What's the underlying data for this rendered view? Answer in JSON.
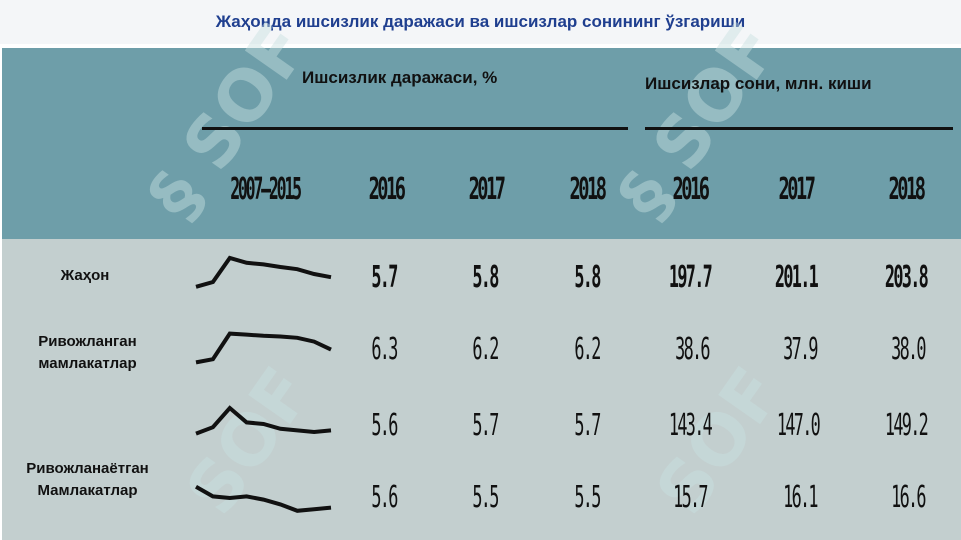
{
  "title": "Жаҳонда ишсизлик даражаси ва ишсизлар сонининг ўзгариши",
  "header": {
    "rate_label": "Ишсизлик даражаси, %",
    "count_label": "Ишсизлар сони, млн. киши",
    "years": [
      "2007–2015",
      "2016",
      "2017",
      "2018",
      "2016",
      "2017",
      "2018"
    ]
  },
  "rows": [
    {
      "label": "Жаҳон",
      "rate_2016": "5.7",
      "rate_2017": "5.8",
      "rate_2018": "5.8",
      "count_2016": "197.7",
      "count_2017": "201.1",
      "count_2018": "203.8",
      "bold": true
    },
    {
      "label": "Ривожланган\nмамлакатлар",
      "rate_2016": "6.3",
      "rate_2017": "6.2",
      "rate_2018": "6.2",
      "count_2016": "38.6",
      "count_2017": "37.9",
      "count_2018": "38.0",
      "bold": false
    },
    {
      "label": "",
      "rate_2016": "5.6",
      "rate_2017": "5.7",
      "rate_2018": "5.7",
      "count_2016": "143.4",
      "count_2017": "147.0",
      "count_2018": "149.2",
      "bold": false
    },
    {
      "label": "Ривожланаётган\nМамлакатлар",
      "rate_2016": "5.6",
      "rate_2017": "5.5",
      "rate_2018": "5.5",
      "count_2016": "15.7",
      "count_2017": "16.1",
      "count_2018": "16.6",
      "bold": false
    }
  ],
  "chart_data": {
    "type": "table",
    "title": "Жаҳонда ишсизлик даражаси ва ишсизлар сонининг ўзгариши",
    "columns": [
      "2007–2015",
      "2016",
      "2017",
      "2018",
      "2016",
      "2017",
      "2018"
    ],
    "column_groups": [
      {
        "name": "Ишсизлик даражаси, %",
        "columns": [
          "2007–2015",
          "2016",
          "2017",
          "2018"
        ]
      },
      {
        "name": "Ишсизлар сони, млн. киши",
        "columns": [
          "2016",
          "2017",
          "2018"
        ]
      }
    ],
    "row_labels": [
      "Жаҳон",
      "Ривожланган мамлакатлар",
      "",
      "Ривожланаётган Мамлакатлар"
    ],
    "values": [
      [
        5.7,
        5.8,
        5.8,
        197.7,
        201.1,
        203.8
      ],
      [
        6.3,
        6.2,
        6.2,
        38.6,
        37.9,
        38.0
      ],
      [
        5.6,
        5.7,
        5.7,
        143.4,
        147.0,
        149.2
      ],
      [
        5.6,
        5.5,
        5.5,
        15.7,
        16.1,
        16.6
      ]
    ],
    "sparklines": [
      [
        0.1,
        0.25,
        1.0,
        0.85,
        0.8,
        0.72,
        0.65,
        0.5,
        0.4
      ],
      [
        0.05,
        0.15,
        0.95,
        0.92,
        0.88,
        0.86,
        0.82,
        0.7,
        0.45
      ],
      [
        0.2,
        0.4,
        1.0,
        0.55,
        0.5,
        0.35,
        0.3,
        0.25,
        0.3
      ],
      [
        0.85,
        0.55,
        0.5,
        0.55,
        0.45,
        0.3,
        0.1,
        0.15,
        0.2
      ]
    ]
  }
}
